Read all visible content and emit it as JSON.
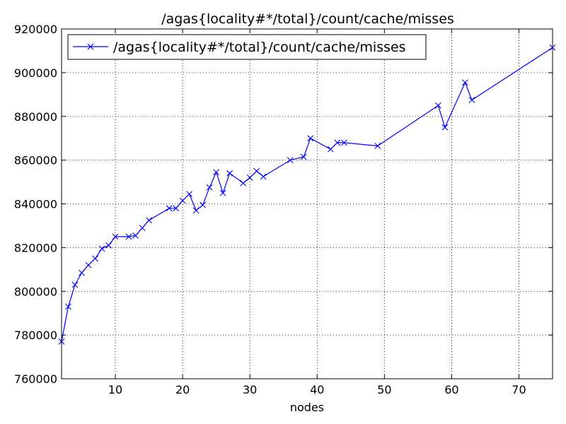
{
  "chart_data": {
    "type": "line",
    "title": "/agas{locality#*/total}/count/cache/misses",
    "xlabel": "nodes",
    "ylabel": "",
    "xlim": [
      2,
      75
    ],
    "ylim": [
      760000,
      920000
    ],
    "xticks": [
      10,
      20,
      30,
      40,
      50,
      60,
      70
    ],
    "yticks": [
      760000,
      780000,
      800000,
      820000,
      840000,
      860000,
      880000,
      900000,
      920000
    ],
    "grid": true,
    "legend_position": "top-left",
    "series": [
      {
        "name": "/agas{locality#*/total}/count/cache/misses",
        "color": "#0000ff",
        "marker": "x",
        "x": [
          2,
          3,
          4,
          5,
          6,
          7,
          8,
          9,
          10,
          12,
          13,
          14,
          15,
          18,
          19,
          20,
          21,
          22,
          23,
          24,
          25,
          26,
          27,
          29,
          30,
          31,
          32,
          36,
          38,
          39,
          42,
          43,
          44,
          49,
          58,
          59,
          62,
          63,
          75
        ],
        "y": [
          777000,
          793000,
          803000,
          808500,
          812000,
          815000,
          819500,
          821000,
          825000,
          825000,
          825500,
          829000,
          832500,
          838000,
          838000,
          841500,
          844500,
          837000,
          839500,
          847500,
          854500,
          845000,
          854000,
          849500,
          852000,
          855000,
          852500,
          860000,
          861500,
          870000,
          865000,
          868000,
          868000,
          866500,
          885000,
          875000,
          895500,
          887500,
          911500
        ]
      }
    ]
  }
}
